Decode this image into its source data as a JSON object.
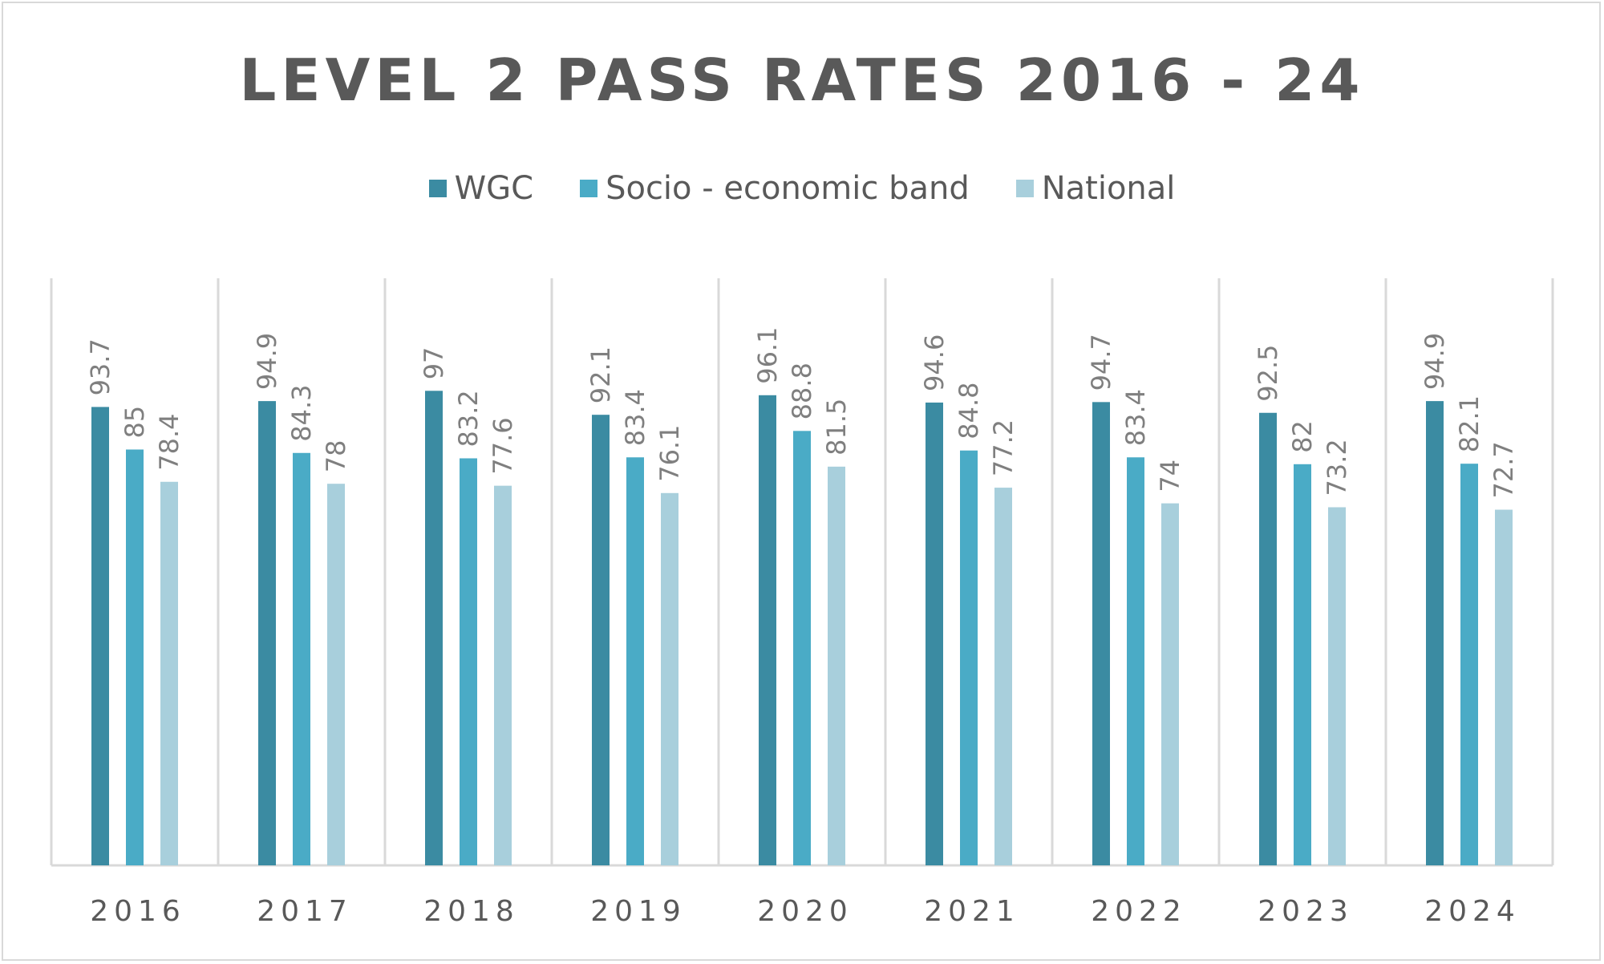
{
  "chart_data": {
    "type": "bar",
    "title": "LEVEL 2 PASS RATES 2016 - 24",
    "categories": [
      "2016",
      "2017",
      "2018",
      "2019",
      "2020",
      "2021",
      "2022",
      "2023",
      "2024"
    ],
    "series": [
      {
        "name": "WGC",
        "color": "#3b8ba2",
        "values": [
          93.7,
          94.9,
          97,
          92.1,
          96.1,
          94.6,
          94.7,
          92.5,
          94.9
        ]
      },
      {
        "name": "Socio - economic band",
        "color": "#4aabc6",
        "values": [
          85,
          84.3,
          83.2,
          83.4,
          88.8,
          84.8,
          83.4,
          82,
          82.1
        ]
      },
      {
        "name": "National",
        "color": "#a8cfdc",
        "values": [
          78.4,
          78,
          77.6,
          76.1,
          81.5,
          77.2,
          74,
          73.2,
          72.7
        ]
      }
    ],
    "xlabel": "",
    "ylabel": "",
    "ylim": [
      0,
      120
    ],
    "legend": "top",
    "grid": "vertical category separators"
  }
}
